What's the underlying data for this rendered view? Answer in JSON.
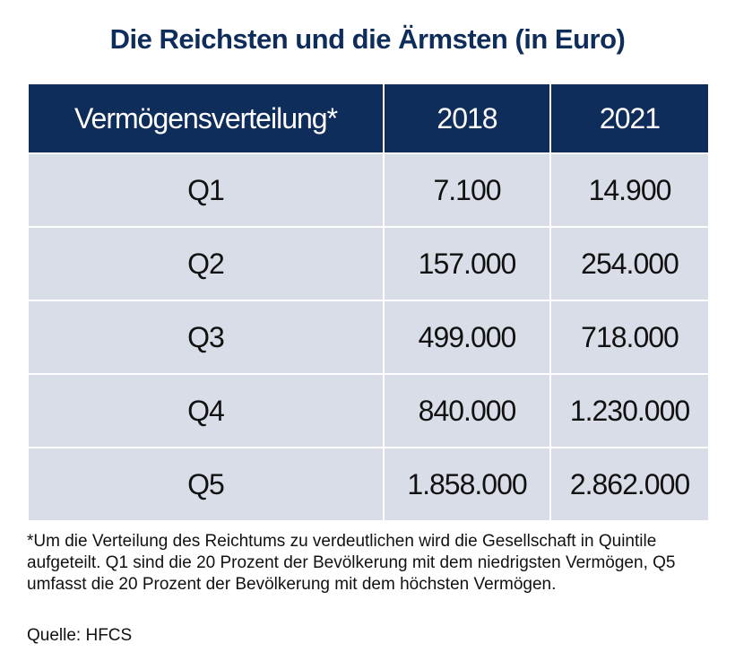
{
  "title": "Die Reichsten und die Ärmsten (in Euro)",
  "table": {
    "header": [
      "Vermögensverteilung*",
      "2018",
      "2021"
    ],
    "rows": [
      [
        "Q1",
        "7.100",
        "14.900"
      ],
      [
        "Q2",
        "157.000",
        "254.000"
      ],
      [
        "Q3",
        "499.000",
        "718.000"
      ],
      [
        "Q4",
        "840.000",
        "1.230.000"
      ],
      [
        "Q5",
        "1.858.000",
        "2.862.000"
      ]
    ]
  },
  "footnote": "*Um die Verteilung des Reichtums zu verdeutlichen wird die Gesellschaft in Quintile aufgeteilt. Q1 sind die 20 Prozent der Bevölkerung mit dem niedrigsten Vermögen, Q5 umfasst die 20 Prozent der Bevölkerung mit dem höchsten Vermögen.",
  "source": "Quelle: HFCS"
}
